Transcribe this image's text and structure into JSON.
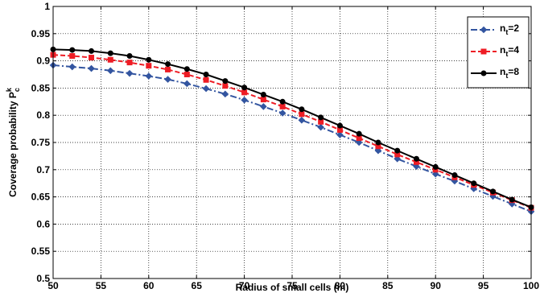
{
  "chart_data": {
    "type": "line",
    "xlabel": "Radius of small cells (m)",
    "ylabel": {
      "base": "Coverage probability P",
      "sup": "k",
      "sub": "c"
    },
    "xlim": [
      50,
      100
    ],
    "ylim": [
      0.5,
      1
    ],
    "xticks": [
      50,
      55,
      60,
      65,
      70,
      75,
      80,
      85,
      90,
      95,
      100
    ],
    "yticks": [
      0.5,
      0.55,
      0.6,
      0.65,
      0.7,
      0.75,
      0.8,
      0.85,
      0.9,
      0.95,
      1
    ],
    "grid": true,
    "legend_position": "top-right",
    "x": [
      50,
      52,
      54,
      56,
      58,
      60,
      62,
      64,
      66,
      68,
      70,
      72,
      74,
      76,
      78,
      80,
      82,
      84,
      86,
      88,
      90,
      92,
      94,
      96,
      98,
      100
    ],
    "series": [
      {
        "name": {
          "base": "n",
          "sub": "t",
          "suffix": "=2"
        },
        "color": "#3355a0",
        "marker": "diamond",
        "dash": "8 3 2 3",
        "values": [
          0.892,
          0.889,
          0.886,
          0.882,
          0.877,
          0.872,
          0.866,
          0.858,
          0.849,
          0.839,
          0.828,
          0.816,
          0.804,
          0.791,
          0.778,
          0.764,
          0.75,
          0.735,
          0.72,
          0.706,
          0.692,
          0.679,
          0.665,
          0.651,
          0.637,
          0.623
        ]
      },
      {
        "name": {
          "base": "n",
          "sub": "t",
          "suffix": "=4"
        },
        "color": "#ee1c24",
        "marker": "square",
        "dash": "6 3",
        "values": [
          0.911,
          0.909,
          0.906,
          0.902,
          0.897,
          0.891,
          0.884,
          0.875,
          0.865,
          0.854,
          0.842,
          0.829,
          0.816,
          0.802,
          0.788,
          0.773,
          0.758,
          0.743,
          0.728,
          0.714,
          0.7,
          0.686,
          0.672,
          0.658,
          0.644,
          0.63
        ]
      },
      {
        "name": {
          "base": "n",
          "sub": "t",
          "suffix": "=8"
        },
        "color": "#000000",
        "marker": "circle",
        "dash": "",
        "values": [
          0.921,
          0.92,
          0.918,
          0.914,
          0.909,
          0.902,
          0.894,
          0.885,
          0.875,
          0.863,
          0.851,
          0.838,
          0.825,
          0.811,
          0.796,
          0.781,
          0.766,
          0.75,
          0.735,
          0.72,
          0.705,
          0.69,
          0.675,
          0.66,
          0.645,
          0.631
        ]
      }
    ]
  }
}
